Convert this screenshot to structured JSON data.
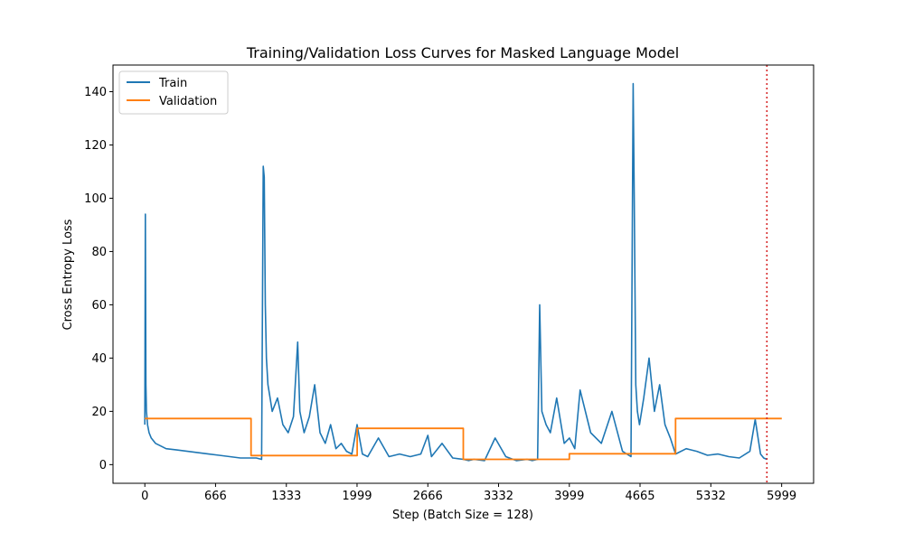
{
  "chart_data": {
    "type": "line",
    "title": "Training/Validation Loss Curves for Masked Language Model",
    "xlabel": "Step (Batch Size = 128)",
    "ylabel": "Cross Entropy Loss",
    "xlim": [
      -300,
      6300
    ],
    "ylim": [
      -7,
      150
    ],
    "xticks": [
      0,
      666,
      1333,
      1999,
      2666,
      3332,
      3999,
      4665,
      5332,
      5999
    ],
    "yticks": [
      0,
      20,
      40,
      60,
      80,
      100,
      120,
      140
    ],
    "grid": false,
    "legend": "top-left",
    "vline": {
      "x": 5860,
      "color": "#d62728",
      "style": "dotted"
    },
    "series": [
      {
        "name": "Train",
        "color": "#1f77b4",
        "x": [
          0,
          5,
          10,
          15,
          25,
          40,
          60,
          100,
          150,
          200,
          300,
          400,
          500,
          600,
          700,
          800,
          900,
          1000,
          1050,
          1100,
          1115,
          1125,
          1135,
          1145,
          1160,
          1180,
          1200,
          1250,
          1300,
          1350,
          1400,
          1440,
          1460,
          1500,
          1550,
          1600,
          1650,
          1700,
          1750,
          1800,
          1850,
          1900,
          1950,
          1999,
          2050,
          2100,
          2200,
          2300,
          2400,
          2500,
          2600,
          2666,
          2700,
          2800,
          2900,
          3000,
          3050,
          3100,
          3200,
          3300,
          3400,
          3500,
          3600,
          3650,
          3700,
          3720,
          3740,
          3780,
          3820,
          3880,
          3950,
          4000,
          4050,
          4100,
          4200,
          4300,
          4400,
          4500,
          4580,
          4600,
          4610,
          4625,
          4640,
          4660,
          4700,
          4750,
          4800,
          4850,
          4900,
          4950,
          5000,
          5100,
          5200,
          5300,
          5400,
          5500,
          5600,
          5700,
          5750,
          5800,
          5830,
          5860
        ],
        "y": [
          15,
          94,
          30,
          20,
          15,
          12,
          10,
          8,
          7,
          6,
          5.5,
          5,
          4.5,
          4,
          3.5,
          3,
          2.5,
          2.5,
          2.5,
          2,
          112,
          108,
          60,
          40,
          30,
          25,
          20,
          25,
          15,
          12,
          18,
          46,
          20,
          12,
          18,
          30,
          12,
          8,
          15,
          6,
          8,
          5,
          4,
          15,
          4,
          3,
          10,
          3,
          4,
          3,
          4,
          11,
          3,
          8,
          2.5,
          2,
          1.5,
          2,
          1.5,
          10,
          3,
          1.5,
          2,
          1.5,
          2,
          60,
          20,
          15,
          12,
          25,
          8,
          10,
          6,
          28,
          12,
          8,
          20,
          5,
          3,
          143,
          100,
          30,
          20,
          15,
          25,
          40,
          20,
          30,
          15,
          10,
          4,
          6,
          5,
          3.5,
          4,
          3,
          2.5,
          5,
          17,
          4,
          2.5,
          2
        ]
      },
      {
        "name": "Validation",
        "color": "#ff7f0e",
        "x": [
          0,
          1000,
          1000,
          2000,
          2000,
          3000,
          3000,
          3999,
          3999,
          5000,
          5000,
          6000
        ],
        "y": [
          17.3,
          17.3,
          3.4,
          3.4,
          13.6,
          13.6,
          2.0,
          2.0,
          4.1,
          4.1,
          17.3,
          17.3
        ]
      }
    ]
  }
}
